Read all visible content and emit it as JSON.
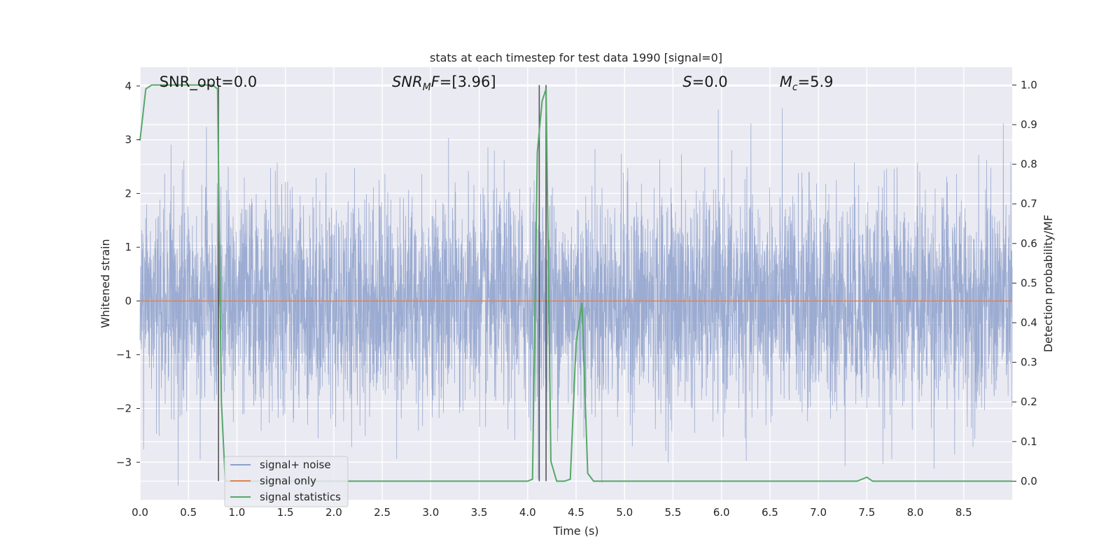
{
  "chart_data": {
    "type": "line",
    "title": "stats at each timestep for test data 1990 [signal=0]",
    "xlabel": "Time (s)",
    "ylabel": "Whitened strain",
    "y2label": "Detection probability/MF",
    "xlim": [
      0,
      9
    ],
    "ylim": [
      -3.7,
      4.35
    ],
    "y2lim": [
      -0.047,
      1.045
    ],
    "x_ticks": [
      "0.0",
      "0.5",
      "1.0",
      "1.5",
      "2.0",
      "2.5",
      "3.0",
      "3.5",
      "4.0",
      "4.5",
      "5.0",
      "5.5",
      "6.0",
      "6.5",
      "7.0",
      "7.5",
      "8.0",
      "8.5"
    ],
    "y_ticks": [
      "4",
      "3",
      "2",
      "1",
      "0",
      "−1",
      "−2",
      "−3"
    ],
    "y2_ticks": [
      "1.0",
      "0.9",
      "0.8",
      "0.7",
      "0.6",
      "0.5",
      "0.4",
      "0.3",
      "0.2",
      "0.1",
      "0.0"
    ],
    "grid": true,
    "legend_position": "lower-left",
    "annotations": [
      {
        "text": "SNR_opt=0.0",
        "x": 0.2
      },
      {
        "text": "SNR",
        "sub": "M",
        "rest": "F=[3.96]",
        "x": 2.6
      },
      {
        "text": "S",
        "rest": "=0.0",
        "x": 5.6
      },
      {
        "text": "M",
        "sub": "c",
        "rest": "=5.9",
        "x": 6.6
      }
    ],
    "series": [
      {
        "name": "signal+ noise",
        "color": "#8da0cb",
        "description": "whitened noise, approx unit-variance, sampled densely over 0-9 s",
        "amplitude_std": 1.0,
        "sample_rate": 512
      },
      {
        "name": "signal only",
        "color": "#dd8452",
        "x": [
          0,
          9
        ],
        "y": [
          0,
          0
        ]
      },
      {
        "name": "signal statistics",
        "color": "#55a868",
        "axis": "right",
        "x": [
          0.0,
          0.06,
          0.12,
          0.2,
          0.4,
          0.6,
          0.75,
          0.8,
          0.84,
          0.88,
          1.0,
          1.5,
          2.0,
          2.5,
          3.0,
          3.5,
          4.0,
          4.05,
          4.1,
          4.15,
          4.19,
          4.24,
          4.3,
          4.38,
          4.44,
          4.5,
          4.56,
          4.62,
          4.68,
          5.0,
          5.5,
          6.0,
          6.5,
          7.0,
          7.4,
          7.5,
          7.56,
          8.0,
          8.5,
          9.0
        ],
        "y": [
          0.86,
          0.99,
          1.0,
          1.0,
          1.0,
          1.0,
          1.0,
          0.99,
          0.2,
          0.0,
          0.0,
          0.0,
          0.0,
          0.0,
          0.0,
          0.0,
          0.0,
          0.005,
          0.83,
          0.96,
          0.99,
          0.05,
          0.0,
          0.0,
          0.005,
          0.35,
          0.45,
          0.02,
          0.0,
          0.0,
          0.0,
          0.0,
          0.0,
          0.0,
          0.0,
          0.01,
          0.0,
          0.0,
          0.0,
          0.0
        ]
      }
    ],
    "vlines": [
      {
        "x": 0.81,
        "color": "#555555"
      },
      {
        "x": 4.12,
        "color": "#555555"
      },
      {
        "x": 4.19,
        "color": "#555555"
      }
    ]
  }
}
